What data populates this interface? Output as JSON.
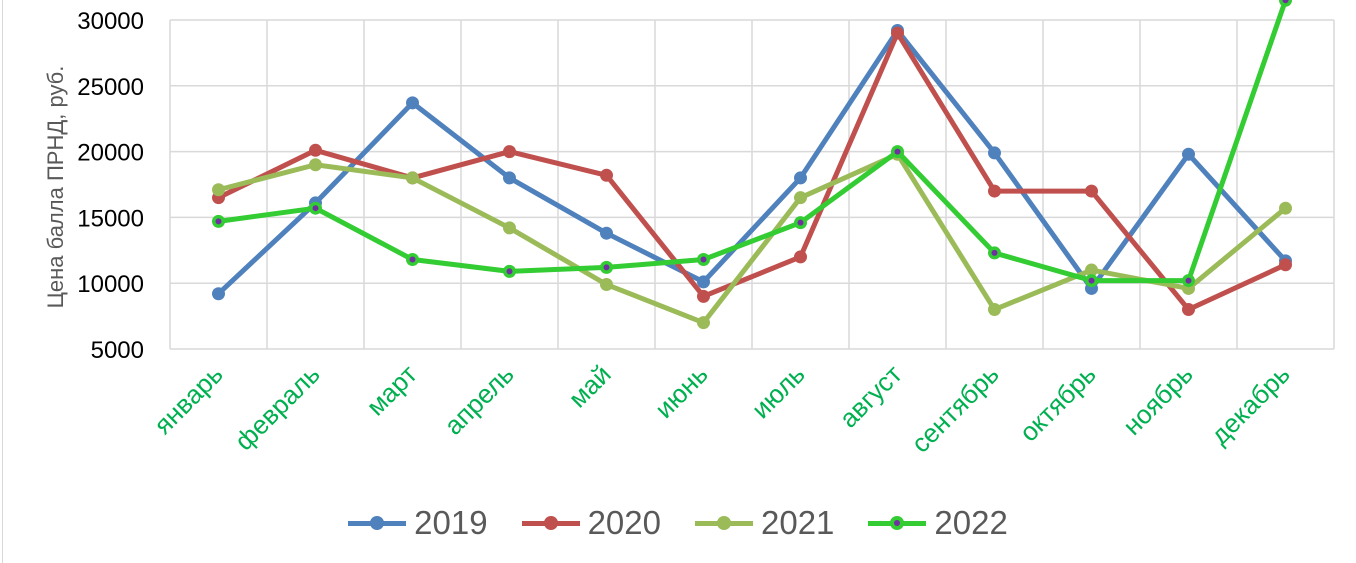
{
  "chart_data": {
    "type": "line",
    "ylabel": "Цена балла ПРНД, руб.",
    "ylim": [
      5000,
      30000
    ],
    "yticks": [
      5000,
      10000,
      15000,
      20000,
      25000,
      30000
    ],
    "ytick_labels": [
      "5000",
      "10000",
      "15000",
      "20000",
      "25000",
      "30000"
    ],
    "grid": true,
    "legend_position": "bottom",
    "categories": [
      "январь",
      "февраль",
      "март",
      "апрель",
      "май",
      "июнь",
      "июль",
      "август",
      "сентябрь",
      "октябрь",
      "ноябрь",
      "декабрь"
    ],
    "category_color": "#00b050",
    "series": [
      {
        "name": "2019",
        "color": "#4f81bd",
        "marker_inner": "#4f81bd",
        "values": [
          9200,
          16100,
          23700,
          18000,
          13800,
          10100,
          18000,
          29200,
          19900,
          9600,
          19800,
          11700
        ]
      },
      {
        "name": "2020",
        "color": "#c0504d",
        "marker_inner": "#c0504d",
        "values": [
          16500,
          20100,
          18000,
          20000,
          18200,
          9000,
          12000,
          29000,
          17000,
          17000,
          8000,
          11400
        ]
      },
      {
        "name": "2021",
        "color": "#9bbb59",
        "marker_inner": "#9bbb59",
        "values": [
          17100,
          19000,
          18000,
          14200,
          9900,
          7000,
          16500,
          19800,
          8000,
          11000,
          9600,
          15700
        ]
      },
      {
        "name": "2022",
        "color": "#33cc33",
        "marker_inner": "#7030a0",
        "values": [
          14700,
          15700,
          11800,
          10900,
          11200,
          11800,
          14600,
          20000,
          12300,
          10200,
          10200,
          31500
        ]
      }
    ]
  }
}
